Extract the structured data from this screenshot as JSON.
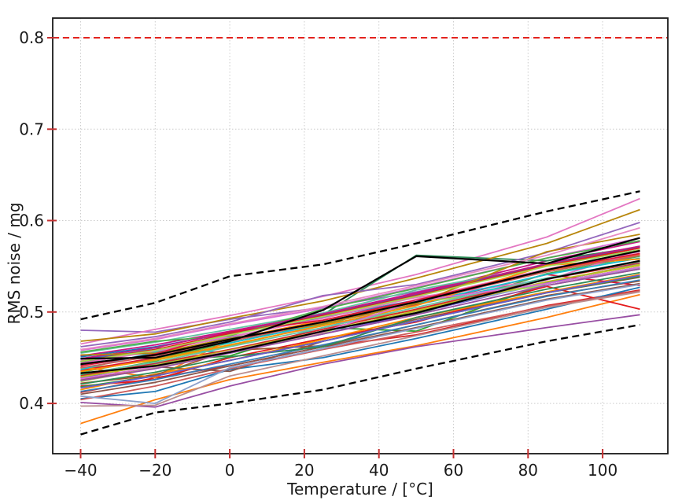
{
  "chart_data": {
    "type": "line",
    "title": "",
    "xlabel": "Temperature / [°C]",
    "ylabel": "RMS noise / mg",
    "xlim": [
      -47.5,
      117.5
    ],
    "ylim": [
      0.345,
      0.8215
    ],
    "grid": true,
    "legend": false,
    "x_ticks": [
      -40,
      -20,
      0,
      20,
      40,
      60,
      80,
      100
    ],
    "x_tick_labels": [
      "−40",
      "−20",
      "0",
      "20",
      "40",
      "60",
      "80",
      "100"
    ],
    "y_ticks": [
      0.4,
      0.5,
      0.6,
      0.7,
      0.8
    ],
    "y_tick_labels": [
      "0.4",
      "0.5",
      "0.6",
      "0.7",
      "0.8"
    ],
    "x": [
      -40,
      -20,
      0,
      25,
      50,
      85,
      110
    ],
    "limit_line": {
      "value": 0.8,
      "color": "#e3231e",
      "style": "dashed"
    },
    "envelope_upper": {
      "color": "#000000",
      "style": "dashed",
      "values": [
        0.492,
        0.51,
        0.539,
        0.552,
        0.575,
        0.61,
        0.632
      ]
    },
    "envelope_lower": {
      "color": "#000000",
      "style": "dashed",
      "values": [
        0.366,
        0.39,
        0.4,
        0.415,
        0.438,
        0.468,
        0.486
      ]
    },
    "highlight_series": [
      {
        "color": "#000000",
        "values": [
          0.449,
          0.45,
          0.468,
          0.502,
          0.561,
          0.553,
          0.581
        ]
      },
      {
        "color": "#000000",
        "values": [
          0.443,
          0.453,
          0.47,
          0.489,
          0.511,
          0.546,
          0.567
        ]
      },
      {
        "color": "#000000",
        "values": [
          0.433,
          0.441,
          0.456,
          0.479,
          0.499,
          0.536,
          0.556
        ]
      }
    ],
    "series": [
      {
        "color": "#d62728",
        "values": [
          0.412,
          0.428,
          0.441,
          0.462,
          0.475,
          0.507,
          0.524
        ]
      },
      {
        "color": "#ff7f0e",
        "values": [
          0.378,
          0.404,
          0.426,
          0.445,
          0.463,
          0.494,
          0.519
        ]
      },
      {
        "color": "#2ca02c",
        "values": [
          0.431,
          0.446,
          0.452,
          0.483,
          0.479,
          0.531,
          0.549
        ]
      },
      {
        "color": "#1f77b4",
        "values": [
          0.405,
          0.413,
          0.437,
          0.45,
          0.471,
          0.503,
          0.527
        ]
      },
      {
        "color": "#9467bd",
        "values": [
          0.48,
          0.478,
          0.492,
          0.505,
          0.522,
          0.551,
          0.572
        ]
      },
      {
        "color": "#8c564b",
        "values": [
          0.426,
          0.44,
          0.435,
          0.468,
          0.492,
          0.521,
          0.538
        ]
      },
      {
        "color": "#e377c2",
        "values": [
          0.465,
          0.481,
          0.496,
          0.517,
          0.541,
          0.582,
          0.624
        ]
      },
      {
        "color": "#bcbd22",
        "values": [
          0.438,
          0.447,
          0.463,
          0.486,
          0.502,
          0.533,
          0.551
        ]
      },
      {
        "color": "#17becf",
        "values": [
          0.442,
          0.461,
          0.455,
          0.483,
          0.508,
          0.537,
          0.556
        ]
      },
      {
        "color": "#e41a1c",
        "values": [
          0.419,
          0.426,
          0.45,
          0.471,
          0.489,
          0.528,
          0.503
        ]
      },
      {
        "color": "#377eb8",
        "values": [
          0.448,
          0.459,
          0.472,
          0.494,
          0.513,
          0.544,
          0.563
        ]
      },
      {
        "color": "#4daf4a",
        "values": [
          0.434,
          0.449,
          0.466,
          0.488,
          0.497,
          0.542,
          0.561
        ]
      },
      {
        "color": "#984ea3",
        "values": [
          0.401,
          0.396,
          0.419,
          0.443,
          0.462,
          0.483,
          0.497
        ]
      },
      {
        "color": "#ff8c00",
        "values": [
          0.415,
          0.432,
          0.447,
          0.47,
          0.494,
          0.522,
          0.541
        ]
      },
      {
        "color": "#a0522d",
        "values": [
          0.422,
          0.431,
          0.458,
          0.463,
          0.486,
          0.518,
          0.534
        ]
      },
      {
        "color": "#c71585",
        "values": [
          0.452,
          0.464,
          0.479,
          0.498,
          0.521,
          0.556,
          0.577
        ]
      },
      {
        "color": "#2e8b57",
        "values": [
          0.445,
          0.459,
          0.475,
          0.497,
          0.562,
          0.556,
          0.571
        ]
      },
      {
        "color": "#b8860b",
        "values": [
          0.468,
          0.476,
          0.493,
          0.512,
          0.537,
          0.575,
          0.612
        ]
      },
      {
        "color": "#6a5acd",
        "values": [
          0.428,
          0.443,
          0.457,
          0.476,
          0.499,
          0.532,
          0.553
        ]
      },
      {
        "color": "#dc143c",
        "values": [
          0.436,
          0.45,
          0.468,
          0.489,
          0.508,
          0.541,
          0.529
        ]
      },
      {
        "color": "#66c2a5",
        "values": [
          0.455,
          0.467,
          0.481,
          0.499,
          0.524,
          0.551,
          0.568
        ]
      },
      {
        "color": "#e78ac3",
        "values": [
          0.447,
          0.456,
          0.474,
          0.481,
          0.514,
          0.547,
          0.566
        ]
      },
      {
        "color": "#8da0cb",
        "values": [
          0.433,
          0.441,
          0.459,
          0.478,
          0.501,
          0.531,
          0.548
        ]
      },
      {
        "color": "#a6d854",
        "values": [
          0.424,
          0.439,
          0.456,
          0.477,
          0.51,
          0.529,
          0.547
        ]
      },
      {
        "color": "#da70d6",
        "values": [
          0.458,
          0.47,
          0.486,
          0.504,
          0.527,
          0.559,
          0.581
        ]
      },
      {
        "color": "#cd5c5c",
        "values": [
          0.404,
          0.419,
          0.438,
          0.459,
          0.478,
          0.506,
          0.523
        ]
      },
      {
        "color": "#d62728",
        "values": [
          0.43,
          0.444,
          0.459,
          0.481,
          0.503,
          0.536,
          0.554
        ]
      },
      {
        "color": "#ff7f0e",
        "values": [
          0.44,
          0.428,
          0.47,
          0.491,
          0.512,
          0.545,
          0.563
        ]
      },
      {
        "color": "#2ca02c",
        "values": [
          0.418,
          0.43,
          0.447,
          0.468,
          0.49,
          0.521,
          0.539
        ]
      },
      {
        "color": "#1f77b4",
        "values": [
          0.451,
          0.462,
          0.477,
          0.497,
          0.519,
          0.552,
          0.571
        ]
      },
      {
        "color": "#9467bd",
        "values": [
          0.462,
          0.473,
          0.489,
          0.518,
          0.53,
          0.565,
          0.598
        ]
      },
      {
        "color": "#8c564b",
        "values": [
          0.41,
          0.423,
          0.441,
          0.462,
          0.483,
          0.514,
          0.531
        ]
      },
      {
        "color": "#e377c2",
        "values": [
          0.444,
          0.457,
          0.473,
          0.493,
          0.516,
          0.535,
          0.567
        ]
      },
      {
        "color": "#bcbd22",
        "values": [
          0.429,
          0.442,
          0.458,
          0.479,
          0.501,
          0.533,
          0.552
        ]
      },
      {
        "color": "#17becf",
        "values": [
          0.437,
          0.456,
          0.466,
          0.487,
          0.509,
          0.541,
          0.559
        ]
      },
      {
        "color": "#e41a1c",
        "values": [
          0.446,
          0.459,
          0.476,
          0.496,
          0.518,
          0.551,
          0.57
        ]
      },
      {
        "color": "#377eb8",
        "values": [
          0.413,
          0.426,
          0.443,
          0.464,
          0.486,
          0.517,
          0.535
        ]
      },
      {
        "color": "#4daf4a",
        "values": [
          0.456,
          0.468,
          0.474,
          0.503,
          0.526,
          0.559,
          0.578
        ]
      },
      {
        "color": "#984ea3",
        "values": [
          0.425,
          0.438,
          0.455,
          0.476,
          0.497,
          0.529,
          0.547
        ]
      },
      {
        "color": "#ff8c00",
        "values": [
          0.435,
          0.448,
          0.464,
          0.485,
          0.507,
          0.551,
          0.558
        ]
      },
      {
        "color": "#bc8f8f",
        "values": [
          0.397,
          0.398,
          0.43,
          0.452,
          0.474,
          0.505,
          0.522
        ]
      },
      {
        "color": "#c71585",
        "values": [
          0.449,
          0.461,
          0.478,
          0.498,
          0.52,
          0.553,
          0.572
        ]
      },
      {
        "color": "#2e8b57",
        "values": [
          0.421,
          0.434,
          0.451,
          0.462,
          0.494,
          0.525,
          0.543
        ]
      },
      {
        "color": "#b8860b",
        "values": [
          0.453,
          0.455,
          0.471,
          0.487,
          0.509,
          0.566,
          0.585
        ]
      },
      {
        "color": "#6a5acd",
        "values": [
          0.417,
          0.43,
          0.447,
          0.468,
          0.49,
          0.521,
          0.54
        ]
      },
      {
        "color": "#dc143c",
        "values": [
          0.441,
          0.454,
          0.478,
          0.491,
          0.513,
          0.546,
          0.564
        ]
      },
      {
        "color": "#66c2a5",
        "values": [
          0.432,
          0.445,
          0.462,
          0.483,
          0.505,
          0.537,
          0.555
        ]
      },
      {
        "color": "#e78ac3",
        "values": [
          0.459,
          0.471,
          0.487,
          0.506,
          0.529,
          0.562,
          0.592
        ]
      },
      {
        "color": "#8da0cb",
        "values": [
          0.408,
          0.4,
          0.439,
          0.46,
          0.482,
          0.513,
          0.53
        ]
      },
      {
        "color": "#a6d854",
        "values": [
          0.446,
          0.458,
          0.475,
          0.495,
          0.517,
          0.55,
          0.568
        ]
      },
      {
        "color": "#da70d6",
        "values": [
          0.427,
          0.44,
          0.457,
          0.478,
          0.512,
          0.531,
          0.549
        ]
      },
      {
        "color": "#cd5c5c",
        "values": [
          0.439,
          0.452,
          0.468,
          0.489,
          0.511,
          0.544,
          0.562
        ]
      }
    ]
  },
  "style": {
    "background": "#ffffff",
    "axis_color": "#1a1a1a",
    "tick_color": "#c53030",
    "grid_color": "#cccccc",
    "text_color": "#1a1a1a"
  }
}
